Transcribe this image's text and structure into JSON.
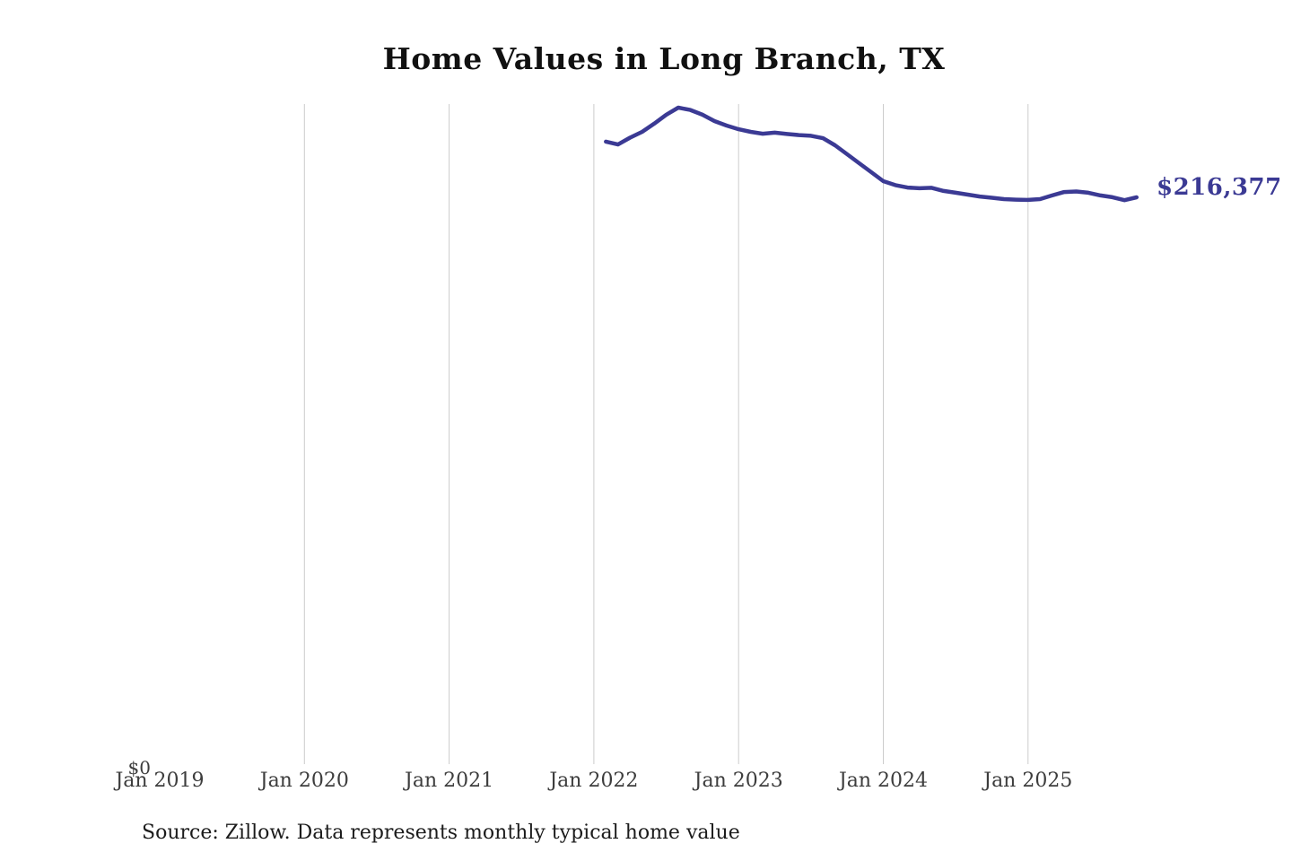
{
  "chart_data": {
    "type": "line",
    "title": "Home Values in Long Branch, TX",
    "series_name": "Monthly typical home value",
    "x": [
      "2022-01",
      "2022-02",
      "2022-03",
      "2022-04",
      "2022-05",
      "2022-06",
      "2022-07",
      "2022-08",
      "2022-09",
      "2022-10",
      "2022-11",
      "2022-12",
      "2023-01",
      "2023-02",
      "2023-03",
      "2023-04",
      "2023-05",
      "2023-06",
      "2023-07",
      "2023-08",
      "2023-09",
      "2023-10",
      "2023-11",
      "2023-12",
      "2024-01",
      "2024-02",
      "2024-03",
      "2024-04",
      "2024-05",
      "2024-06",
      "2024-07",
      "2024-08",
      "2024-09",
      "2024-10",
      "2024-11",
      "2024-12",
      "2025-01",
      "2025-02",
      "2025-03",
      "2025-04",
      "2025-05",
      "2025-06",
      "2025-07",
      "2025-08",
      "2025-09"
    ],
    "values": [
      237500,
      236400,
      239000,
      241200,
      244300,
      247700,
      250400,
      249500,
      247700,
      245300,
      243600,
      242200,
      241200,
      240500,
      240900,
      240400,
      240000,
      239700,
      238800,
      236100,
      232700,
      229300,
      225900,
      222500,
      221000,
      220100,
      219800,
      220000,
      218800,
      218100,
      217400,
      216700,
      216200,
      215700,
      215500,
      215400,
      215700,
      217100,
      218400,
      218600,
      218100,
      217100,
      216400,
      215300,
      216377
    ],
    "x_tick_labels": [
      "Jan 2019",
      "Jan 2020",
      "Jan 2021",
      "Jan 2022",
      "Jan 2023",
      "Jan 2024",
      "Jan 2025"
    ],
    "y_tick_labels": [
      "$0"
    ],
    "ylim": [
      0,
      251800
    ],
    "grid": "vertical-only",
    "legend": "none",
    "end_annotation": "$216,377",
    "last_value": 216377,
    "line_color": "#3b3a94",
    "grid_color": "#cccccc",
    "tick_label_color": "#3d3d3d"
  },
  "page": {
    "source_note": "Source: Zillow. Data represents monthly typical home value"
  }
}
